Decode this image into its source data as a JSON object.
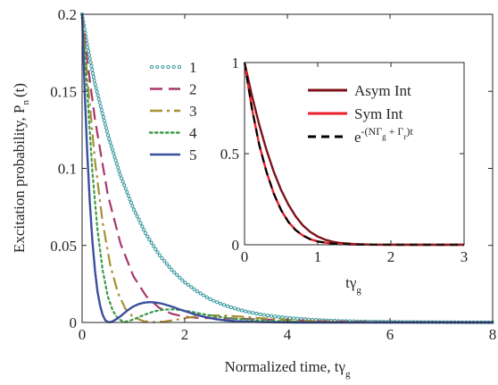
{
  "chart_data": [
    {
      "type": "line",
      "title": "",
      "xlabel": "Normalized time, tγ",
      "xlabel_sub": "g",
      "ylabel": "Excitation probability,  P",
      "ylabel_sub": "n",
      "ylabel_suffix": "(t)",
      "xlim": [
        0,
        8
      ],
      "ylim": [
        0,
        0.2
      ],
      "xticks": [
        "0",
        "2",
        "4",
        "6",
        "8"
      ],
      "yticks": [
        "0",
        "0.05",
        "0.1",
        "0.15",
        "0.2"
      ],
      "grid": false,
      "legend": "top-center",
      "series": [
        {
          "name": "1",
          "color": "#2a9096",
          "style": "circles",
          "x": [
            0,
            0.1,
            0.25,
            0.5,
            0.75,
            1.0,
            1.25,
            1.5,
            1.75,
            2.0,
            2.25,
            2.5,
            2.75,
            3.0,
            3.25,
            3.5,
            3.75,
            4.0,
            4.5,
            5.0,
            5.5,
            6.0,
            6.5,
            7.0,
            7.5,
            8.0
          ],
          "y": [
            0.2,
            0.18,
            0.155,
            0.122,
            0.095,
            0.074,
            0.057,
            0.044,
            0.034,
            0.026,
            0.02,
            0.015,
            0.0115,
            0.0088,
            0.0067,
            0.0051,
            0.0039,
            0.003,
            0.0017,
            0.001,
            0.0006,
            0.0004,
            0.0003,
            0.0002,
            0.0001,
            0.0001
          ]
        },
        {
          "name": "2",
          "color": "#a8366e",
          "style": "dashed",
          "x": [
            0,
            0.1,
            0.25,
            0.5,
            0.75,
            1.0,
            1.25,
            1.5,
            1.75,
            2.0,
            2.25,
            2.5,
            3.0,
            3.5,
            4.0,
            4.5,
            5.0,
            6.0,
            7.0,
            8.0
          ],
          "y": [
            0.2,
            0.17,
            0.132,
            0.083,
            0.051,
            0.03,
            0.017,
            0.0095,
            0.0056,
            0.0037,
            0.003,
            0.0028,
            0.0025,
            0.002,
            0.0015,
            0.001,
            0.0006,
            0.0002,
            0.0001,
            0
          ],
          "dash": "14,7"
        },
        {
          "name": "3",
          "color": "#a89032",
          "style": "dashdot",
          "x": [
            0,
            0.1,
            0.25,
            0.4,
            0.55,
            0.7,
            0.85,
            1.0,
            1.2,
            1.4,
            1.6,
            1.8,
            2.0,
            2.2,
            2.4,
            2.6,
            2.8,
            3.0,
            3.4,
            3.8,
            4.2,
            5.0,
            6.0,
            7.0,
            8.0
          ],
          "y": [
            0.2,
            0.16,
            0.105,
            0.065,
            0.037,
            0.019,
            0.0085,
            0.0035,
            0.0008,
            0.0002,
            0.0006,
            0.0016,
            0.0028,
            0.0038,
            0.0044,
            0.0046,
            0.0044,
            0.004,
            0.003,
            0.002,
            0.0012,
            0.0004,
            0.0001,
            0,
            0
          ],
          "dash": "14,5,3,5"
        },
        {
          "name": "4",
          "color": "#3c9a4a",
          "style": "dotted",
          "x": [
            0,
            0.1,
            0.2,
            0.3,
            0.4,
            0.5,
            0.6,
            0.7,
            0.8,
            0.9,
            1.0,
            1.2,
            1.4,
            1.6,
            1.8,
            2.0,
            2.2,
            2.4,
            2.6,
            2.8,
            3.0,
            3.4,
            3.8,
            4.2,
            5.0,
            6.0,
            7.0,
            8.0
          ],
          "y": [
            0.2,
            0.15,
            0.098,
            0.06,
            0.034,
            0.017,
            0.0075,
            0.0025,
            0.0005,
            0.0008,
            0.002,
            0.0048,
            0.0072,
            0.0084,
            0.0085,
            0.0077,
            0.0065,
            0.0052,
            0.004,
            0.0031,
            0.0024,
            0.0015,
            0.0009,
            0.0005,
            0.0002,
            0,
            0,
            0
          ],
          "dash": "2.5,3.5"
        },
        {
          "name": "5",
          "color": "#3a4f9e",
          "style": "solid",
          "x": [
            0,
            0.05,
            0.1,
            0.15,
            0.2,
            0.25,
            0.3,
            0.35,
            0.4,
            0.45,
            0.5,
            0.55,
            0.6,
            0.7,
            0.8,
            0.9,
            1.0,
            1.1,
            1.2,
            1.3,
            1.4,
            1.5,
            1.6,
            1.7,
            1.8,
            1.9,
            2.0,
            2.2,
            2.4,
            2.6,
            2.8,
            3.0,
            3.4,
            3.8,
            4.2,
            5.0,
            6.0,
            8.0
          ],
          "y": [
            0.2,
            0.15,
            0.11,
            0.078,
            0.053,
            0.034,
            0.02,
            0.011,
            0.005,
            0.0015,
            0.0003,
            0.0002,
            0.0008,
            0.0028,
            0.0055,
            0.0082,
            0.0104,
            0.0119,
            0.0128,
            0.0132,
            0.0131,
            0.0126,
            0.0118,
            0.0108,
            0.0097,
            0.0085,
            0.0074,
            0.0052,
            0.0035,
            0.0022,
            0.0013,
            0.0008,
            0.0003,
            0.0001,
            0,
            0,
            0,
            0
          ]
        }
      ]
    },
    {
      "type": "line",
      "title": "",
      "xlabel": "tγ",
      "xlabel_sub": "g",
      "ylabel": "",
      "xlim": [
        0,
        3
      ],
      "ylim": [
        0,
        1
      ],
      "xticks": [
        "0",
        "1",
        "2",
        "3"
      ],
      "yticks": [
        "0",
        "0.5",
        "1"
      ],
      "grid": false,
      "legend": "top-right",
      "series": [
        {
          "name": "Asym Int",
          "color": "#7d1219",
          "style": "solid",
          "x": [
            0,
            0.1,
            0.2,
            0.3,
            0.4,
            0.5,
            0.6,
            0.7,
            0.8,
            0.9,
            1.0,
            1.1,
            1.2,
            1.3,
            1.5,
            1.75,
            2.0,
            2.5,
            3.0
          ],
          "y": [
            1,
            0.82,
            0.66,
            0.52,
            0.4,
            0.3,
            0.22,
            0.155,
            0.105,
            0.07,
            0.045,
            0.028,
            0.017,
            0.01,
            0.004,
            0.001,
            0.0003,
            0,
            0
          ]
        },
        {
          "name": "Sym Int",
          "color": "#e8202a",
          "style": "solid",
          "x": [
            0,
            0.1,
            0.2,
            0.3,
            0.4,
            0.5,
            0.6,
            0.7,
            0.8,
            0.9,
            1.0,
            1.2,
            1.5,
            2.0,
            2.5,
            3.0
          ],
          "y": [
            1,
            0.75,
            0.55,
            0.4,
            0.28,
            0.19,
            0.125,
            0.08,
            0.05,
            0.03,
            0.018,
            0.006,
            0.001,
            0,
            0,
            0
          ]
        },
        {
          "name": "e",
          "label_exponent": "-(NΓ",
          "label_sub": "g",
          "label_exponent_mid": " + Γ",
          "label_sub2": "r",
          "label_exponent_end": ")t",
          "color": "#000000",
          "style": "dashed",
          "x": [
            0,
            0.1,
            0.2,
            0.3,
            0.4,
            0.5,
            0.6,
            0.7,
            0.8,
            0.9,
            1.0,
            1.2,
            1.5,
            2.0,
            2.5,
            3.0
          ],
          "y": [
            1,
            0.75,
            0.55,
            0.4,
            0.28,
            0.19,
            0.125,
            0.08,
            0.05,
            0.03,
            0.018,
            0.006,
            0.001,
            0,
            0,
            0
          ],
          "dash": "9,6"
        }
      ]
    }
  ]
}
